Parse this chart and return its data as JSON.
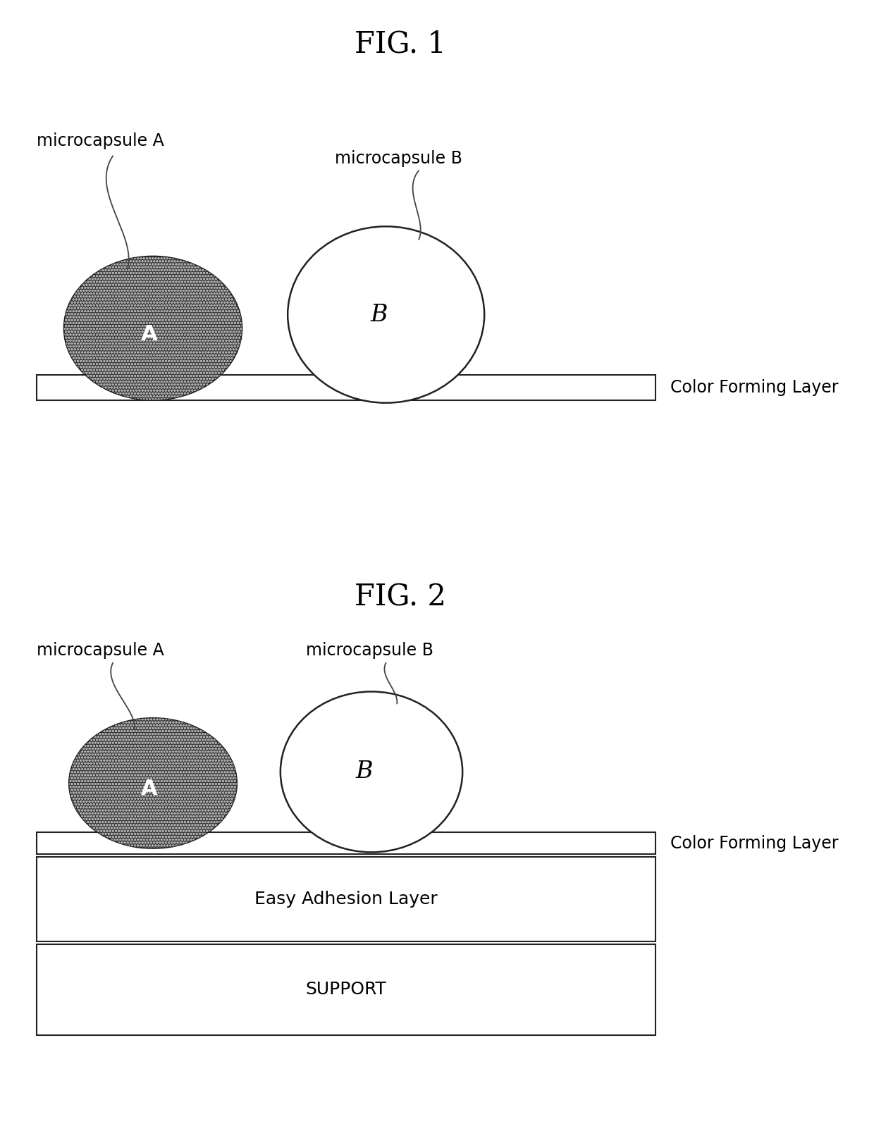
{
  "fig1_title": "FIG. 1",
  "fig2_title": "FIG. 2",
  "label_microcapsule_A": "microcapsule A",
  "label_microcapsule_B": "microcapsule B",
  "label_A": "A",
  "label_B": "B",
  "label_color_forming": "Color Forming Layer",
  "label_easy_adhesion": "Easy Adhesion Layer",
  "label_support": "SUPPORT",
  "bg_color": "#ffffff",
  "capsule_A_fill": "#3a3a3a",
  "border_color": "#222222",
  "layer_fill": "#ffffff",
  "text_color": "#000000",
  "fig1_title_fontsize": 30,
  "fig2_title_fontsize": 30,
  "label_fontsize": 17,
  "layer_label_fontsize": 17,
  "capsule_label_fontsize_A": 22,
  "capsule_label_fontsize_B": 24
}
